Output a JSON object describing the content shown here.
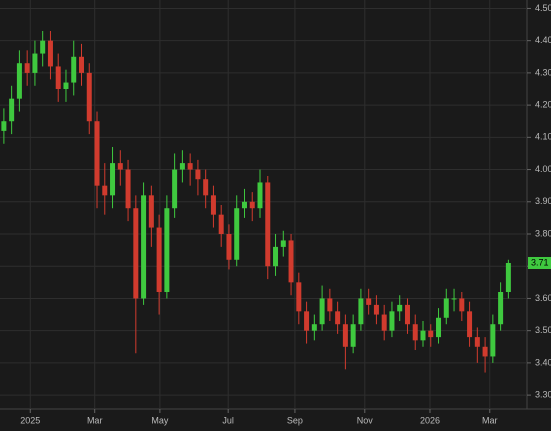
{
  "chart_data": {
    "type": "ohlc",
    "open": [
      4.12,
      4.15,
      4.22,
      4.33,
      4.3,
      4.36,
      4.4,
      4.32,
      4.25,
      4.27,
      4.35,
      4.3,
      4.15,
      3.95,
      3.92,
      4.02,
      4.0,
      3.88,
      3.6,
      3.92,
      3.82,
      3.62,
      3.88,
      4.0,
      4.02,
      4.0,
      3.97,
      3.92,
      3.86,
      3.8,
      3.72,
      3.88,
      3.9,
      3.88,
      3.96,
      3.7,
      3.76,
      3.78,
      3.65,
      3.56,
      3.5,
      3.52,
      3.6,
      3.56,
      3.52,
      3.45,
      3.52,
      3.6,
      3.58,
      3.55,
      3.5,
      3.56,
      3.58,
      3.52,
      3.47,
      3.5,
      3.48,
      3.54,
      3.6,
      3.6,
      3.56,
      3.48,
      3.45,
      3.42,
      3.52,
      3.62
    ],
    "high": [
      4.19,
      4.26,
      4.37,
      4.37,
      4.4,
      4.43,
      4.43,
      4.36,
      4.31,
      4.4,
      4.39,
      4.33,
      4.18,
      4.02,
      4.07,
      4.06,
      4.03,
      3.92,
      3.96,
      3.95,
      3.86,
      3.92,
      4.05,
      4.06,
      4.05,
      4.03,
      4.0,
      3.95,
      3.89,
      3.83,
      3.92,
      3.94,
      3.93,
      4.0,
      3.98,
      3.8,
      3.81,
      3.8,
      3.68,
      3.59,
      3.55,
      3.64,
      3.63,
      3.59,
      3.55,
      3.55,
      3.63,
      3.63,
      3.61,
      3.58,
      3.59,
      3.61,
      3.6,
      3.55,
      3.53,
      3.52,
      3.57,
      3.63,
      3.63,
      3.62,
      3.59,
      3.51,
      3.48,
      3.55,
      3.65,
      3.72
    ],
    "low": [
      4.08,
      4.11,
      4.18,
      4.26,
      4.26,
      4.32,
      4.28,
      4.21,
      4.21,
      4.23,
      4.26,
      4.11,
      3.88,
      3.86,
      3.88,
      3.95,
      3.84,
      3.43,
      3.58,
      3.76,
      3.55,
      3.6,
      3.85,
      3.96,
      3.95,
      3.92,
      3.88,
      3.82,
      3.76,
      3.69,
      3.7,
      3.85,
      3.84,
      3.85,
      3.66,
      3.67,
      3.73,
      3.61,
      3.52,
      3.46,
      3.47,
      3.5,
      3.53,
      3.49,
      3.38,
      3.43,
      3.5,
      3.55,
      3.52,
      3.47,
      3.48,
      3.53,
      3.49,
      3.44,
      3.45,
      3.45,
      3.46,
      3.52,
      3.56,
      3.53,
      3.45,
      3.4,
      3.37,
      3.4,
      3.5,
      3.6
    ],
    "close": [
      4.15,
      4.22,
      4.33,
      4.3,
      4.36,
      4.4,
      4.32,
      4.25,
      4.27,
      4.35,
      4.3,
      4.15,
      3.95,
      3.92,
      4.02,
      4.0,
      3.88,
      3.6,
      3.92,
      3.82,
      3.62,
      3.88,
      4.0,
      4.02,
      4.0,
      3.97,
      3.92,
      3.86,
      3.8,
      3.72,
      3.88,
      3.9,
      3.88,
      3.96,
      3.7,
      3.76,
      3.78,
      3.65,
      3.56,
      3.5,
      3.52,
      3.6,
      3.56,
      3.52,
      3.45,
      3.52,
      3.6,
      3.58,
      3.55,
      3.5,
      3.56,
      3.58,
      3.52,
      3.47,
      3.5,
      3.48,
      3.54,
      3.6,
      3.6,
      3.56,
      3.48,
      3.45,
      3.42,
      3.52,
      3.62,
      3.71
    ],
    "up_color": "#3fc93f",
    "down_color": "#d13b2e",
    "xlim": [
      -0.5,
      67.4
    ],
    "xticks": [
      {
        "value": 3.4,
        "label": "2025"
      },
      {
        "value": 11.7,
        "label": "Mar"
      },
      {
        "value": 20.1,
        "label": "May"
      },
      {
        "value": 28.9,
        "label": "Jul"
      },
      {
        "value": 37.5,
        "label": "Sep"
      },
      {
        "value": 46.5,
        "label": "Nov"
      },
      {
        "value": 54.9,
        "label": "2026"
      },
      {
        "value": 62.6,
        "label": "Mar"
      }
    ],
    "ylim": [
      3.26,
      4.52
    ],
    "yticks": [
      {
        "value": 3.3,
        "label": "3.30"
      },
      {
        "value": 3.4,
        "label": "3.40"
      },
      {
        "value": 3.5,
        "label": "3.50"
      },
      {
        "value": 3.6,
        "label": "3.60"
      },
      {
        "value": 3.7,
        "label": "3.70"
      },
      {
        "value": 3.8,
        "label": "3.80"
      },
      {
        "value": 3.9,
        "label": "3.90"
      },
      {
        "value": 4.0,
        "label": "4.00"
      },
      {
        "value": 4.1,
        "label": "4.10"
      },
      {
        "value": 4.2,
        "label": "4.20"
      },
      {
        "value": 4.3,
        "label": "4.30"
      },
      {
        "value": 4.4,
        "label": "4.40"
      },
      {
        "value": 4.5,
        "label": "4.50"
      }
    ],
    "grid": true
  }
}
